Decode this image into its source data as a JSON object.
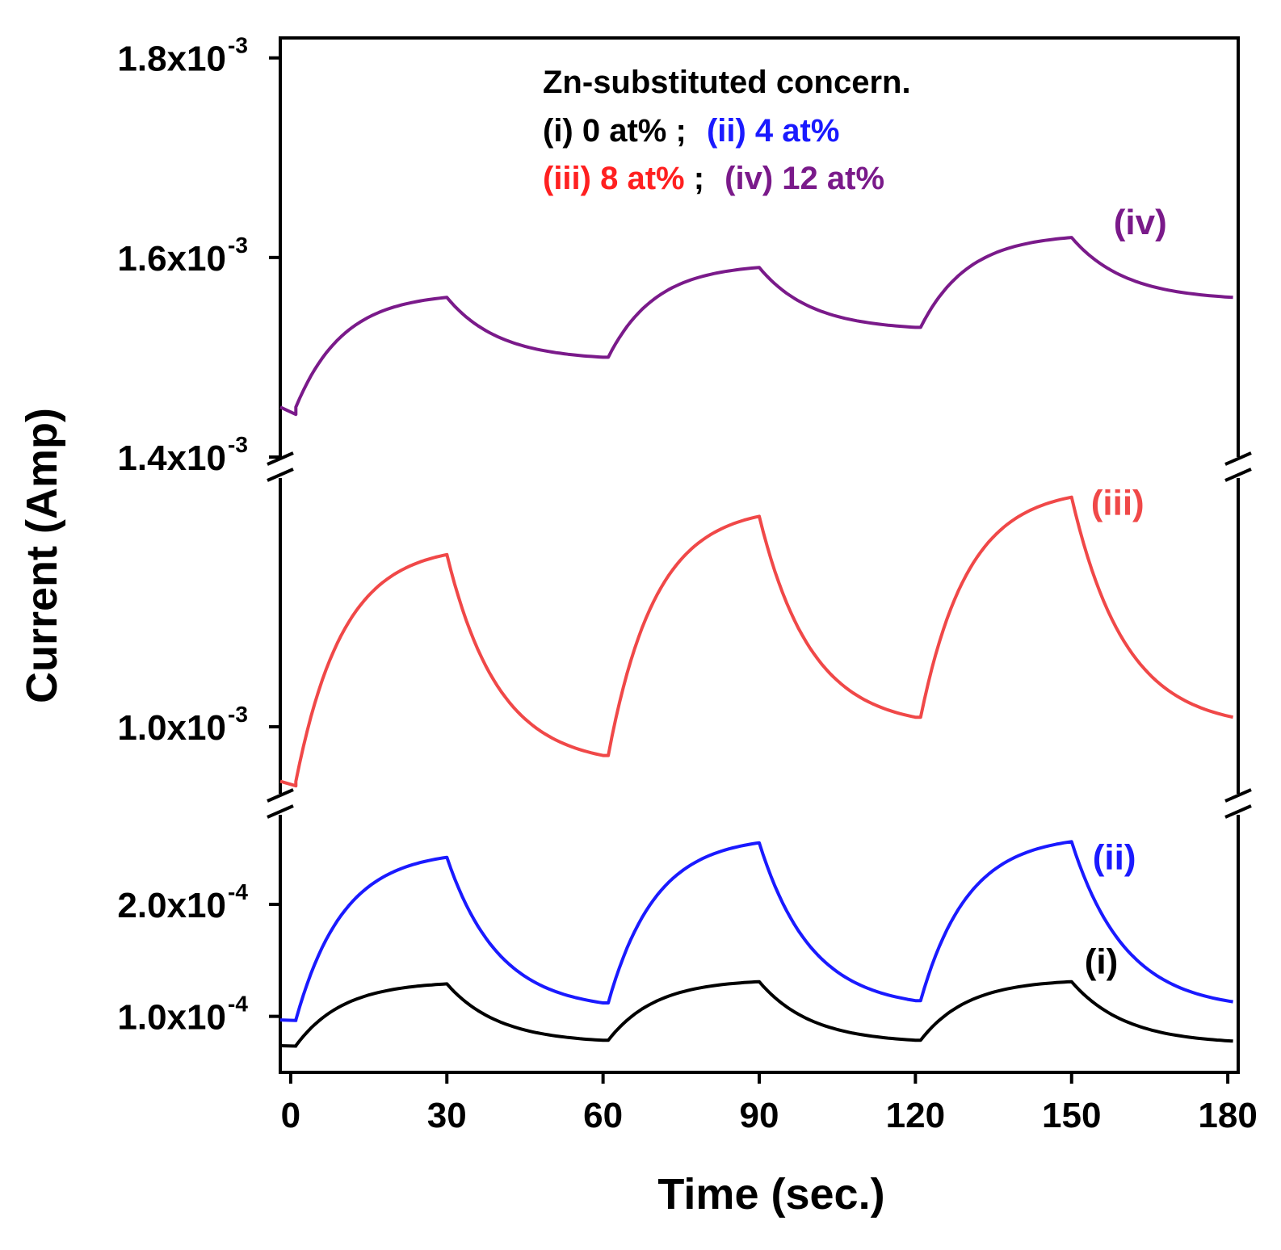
{
  "chart_data": {
    "type": "line",
    "title": "",
    "xlabel": "Time (sec.)",
    "ylabel": "Current (Amp)",
    "xlim": [
      -2,
      182
    ],
    "x_ticks": [
      "0",
      "30",
      "60",
      "90",
      "120",
      "150",
      "180"
    ],
    "y_axis_broken": true,
    "y_segments": [
      {
        "name": "lower",
        "ylim": [
          5e-05,
          0.00028
        ],
        "ticks": [
          {
            "value": 0.0001,
            "base": "1.0x10",
            "exp": "-4"
          },
          {
            "value": 0.0002,
            "base": "2.0x10",
            "exp": "-4"
          }
        ]
      },
      {
        "name": "middle",
        "ylim": [
          0.00093,
          0.00126
        ],
        "ticks": [
          {
            "value": 0.001,
            "base": "1.0x10",
            "exp": "-3"
          }
        ]
      },
      {
        "name": "upper",
        "ylim": [
          0.0014,
          0.00182
        ],
        "ticks": [
          {
            "value": 0.0014,
            "base": "1.4x10",
            "exp": "-3"
          },
          {
            "value": 0.0016,
            "base": "1.6x10",
            "exp": "-3"
          },
          {
            "value": 0.0018,
            "base": "1.8x10",
            "exp": "-3"
          }
        ]
      }
    ],
    "legend": {
      "title": "Zn-substituted concern.",
      "line1": [
        {
          "text": "(i) 0 at%",
          "color": "#000000"
        },
        {
          "text": ";",
          "color": "#000000"
        },
        {
          "text": "(ii) 4 at%",
          "color": "#1a1aff"
        }
      ],
      "line2": [
        {
          "text": "(iii) 8 at%",
          "color": "#ff2020"
        },
        {
          "text": ";",
          "color": "#000000"
        },
        {
          "text": "(iv) 12 at%",
          "color": "#7a1a8a"
        }
      ],
      "position": "top-center"
    },
    "series": [
      {
        "name": "(iv)",
        "label": "(iv)",
        "segment": "upper",
        "color": "#7a1a8a",
        "start": 0.00145,
        "cycles": [
          {
            "t0": 0,
            "on_end": 0.00156,
            "off_end": 0.0015
          },
          {
            "t0": 60,
            "on_end": 0.00159,
            "off_end": 0.00153
          },
          {
            "t0": 120,
            "on_end": 0.00162,
            "off_end": 0.00156
          }
        ]
      },
      {
        "name": "(iii)",
        "label": "(iii)",
        "segment": "middle",
        "color": "#f04848",
        "start": 0.000943,
        "cycles": [
          {
            "t0": 0,
            "on_end": 0.00118,
            "off_end": 0.00097
          },
          {
            "t0": 60,
            "on_end": 0.00122,
            "off_end": 0.00101
          },
          {
            "t0": 120,
            "on_end": 0.00124,
            "off_end": 0.00101
          }
        ]
      },
      {
        "name": "(ii)",
        "label": "(ii)",
        "segment": "lower",
        "color": "#1a1aff",
        "start": 9.68e-05,
        "cycles": [
          {
            "t0": 0,
            "on_end": 0.000242,
            "off_end": 0.000112
          },
          {
            "t0": 60,
            "on_end": 0.000255,
            "off_end": 0.000114
          },
          {
            "t0": 120,
            "on_end": 0.000256,
            "off_end": 0.000113
          }
        ]
      },
      {
        "name": "(i)",
        "label": "(i)",
        "segment": "lower",
        "color": "#000000",
        "start": 7.38e-05,
        "cycles": [
          {
            "t0": 0,
            "on_end": 0.000129,
            "off_end": 7.86e-05
          },
          {
            "t0": 60,
            "on_end": 0.000131,
            "off_end": 7.87e-05
          },
          {
            "t0": 120,
            "on_end": 0.000131,
            "off_end": 7.79e-05
          }
        ]
      }
    ]
  }
}
